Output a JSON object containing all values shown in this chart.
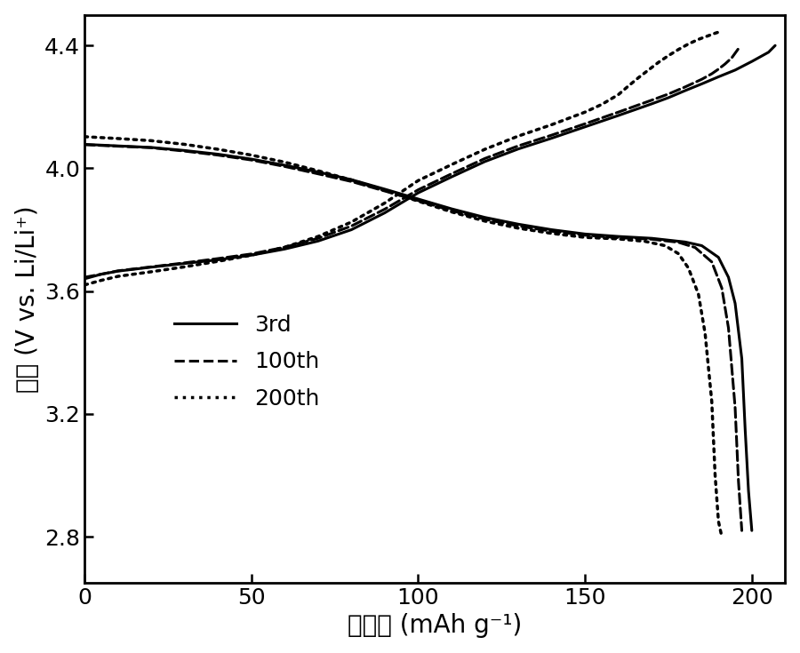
{
  "xlabel": "比容量 (mAh g⁻¹)",
  "ylabel": "电势 (V vs. Li/Li⁺)",
  "xlim": [
    0,
    210
  ],
  "ylim": [
    2.65,
    4.5
  ],
  "xticks": [
    0,
    50,
    100,
    150,
    200
  ],
  "yticks": [
    2.8,
    3.2,
    3.6,
    4.0,
    4.4
  ],
  "legend": [
    {
      "label": "3rd",
      "linestyle": "solid",
      "linewidth": 2.2
    },
    {
      "label": "100th",
      "linestyle": "dashed",
      "linewidth": 2.2
    },
    {
      "label": "200th",
      "linestyle": "dotted",
      "linewidth": 2.5
    }
  ],
  "curves": {
    "3rd_charge": {
      "x": [
        0,
        5,
        10,
        20,
        30,
        40,
        50,
        60,
        70,
        80,
        90,
        100,
        110,
        120,
        130,
        140,
        150,
        160,
        170,
        175,
        180,
        185,
        190,
        195,
        200,
        205,
        207
      ],
      "y": [
        3.64,
        3.655,
        3.665,
        3.678,
        3.69,
        3.702,
        3.717,
        3.737,
        3.763,
        3.8,
        3.855,
        3.92,
        3.972,
        4.022,
        4.063,
        4.098,
        4.135,
        4.172,
        4.21,
        4.23,
        4.253,
        4.275,
        4.298,
        4.32,
        4.348,
        4.378,
        4.4
      ],
      "linestyle": "solid",
      "linewidth": 2.2
    },
    "3rd_discharge": {
      "x": [
        0,
        10,
        20,
        30,
        40,
        50,
        60,
        70,
        80,
        90,
        100,
        110,
        120,
        130,
        140,
        150,
        160,
        170,
        180,
        185,
        190,
        193,
        195,
        197,
        198,
        199,
        200
      ],
      "y": [
        4.078,
        4.073,
        4.068,
        4.058,
        4.046,
        4.03,
        4.01,
        3.988,
        3.963,
        3.932,
        3.9,
        3.868,
        3.84,
        3.818,
        3.8,
        3.786,
        3.778,
        3.772,
        3.76,
        3.748,
        3.71,
        3.645,
        3.56,
        3.38,
        3.15,
        2.95,
        2.82
      ],
      "linestyle": "solid",
      "linewidth": 2.2
    },
    "100th_charge": {
      "x": [
        0,
        5,
        10,
        20,
        30,
        40,
        50,
        60,
        70,
        80,
        90,
        100,
        110,
        120,
        130,
        140,
        150,
        160,
        170,
        175,
        180,
        185,
        188,
        190,
        192,
        194,
        196
      ],
      "y": [
        3.645,
        3.655,
        3.666,
        3.679,
        3.692,
        3.706,
        3.721,
        3.743,
        3.772,
        3.812,
        3.867,
        3.93,
        3.982,
        4.032,
        4.073,
        4.108,
        4.145,
        4.183,
        4.222,
        4.242,
        4.265,
        4.29,
        4.308,
        4.323,
        4.34,
        4.36,
        4.39
      ],
      "linestyle": "dashed",
      "linewidth": 2.2
    },
    "100th_discharge": {
      "x": [
        0,
        10,
        20,
        30,
        40,
        50,
        60,
        70,
        80,
        90,
        100,
        110,
        120,
        130,
        140,
        150,
        160,
        170,
        178,
        183,
        188,
        191,
        193,
        195,
        196,
        197
      ],
      "y": [
        4.077,
        4.072,
        4.067,
        4.056,
        4.043,
        4.027,
        4.006,
        3.982,
        3.957,
        3.926,
        3.895,
        3.862,
        3.834,
        3.812,
        3.795,
        3.782,
        3.774,
        3.769,
        3.759,
        3.742,
        3.695,
        3.61,
        3.48,
        3.22,
        2.98,
        2.82
      ],
      "linestyle": "dashed",
      "linewidth": 2.2
    },
    "200th_charge": {
      "x": [
        0,
        5,
        10,
        20,
        30,
        40,
        50,
        60,
        70,
        80,
        90,
        100,
        110,
        120,
        130,
        140,
        150,
        155,
        160,
        163,
        166,
        169,
        172,
        175,
        178,
        181,
        184,
        187,
        189,
        191
      ],
      "y": [
        3.62,
        3.635,
        3.648,
        3.663,
        3.679,
        3.697,
        3.717,
        3.743,
        3.778,
        3.825,
        3.887,
        3.96,
        4.012,
        4.062,
        4.105,
        4.142,
        4.183,
        4.208,
        4.24,
        4.268,
        4.295,
        4.32,
        4.345,
        4.367,
        4.387,
        4.405,
        4.42,
        4.432,
        4.44,
        4.447
      ],
      "linestyle": "dotted",
      "linewidth": 2.5
    },
    "200th_discharge": {
      "x": [
        0,
        10,
        20,
        30,
        40,
        50,
        60,
        70,
        80,
        90,
        100,
        110,
        120,
        130,
        140,
        150,
        160,
        168,
        174,
        178,
        181,
        184,
        186,
        188,
        189,
        190,
        191
      ],
      "y": [
        4.103,
        4.097,
        4.09,
        4.078,
        4.062,
        4.043,
        4.02,
        3.992,
        3.962,
        3.928,
        3.893,
        3.858,
        3.828,
        3.805,
        3.788,
        3.775,
        3.77,
        3.762,
        3.748,
        3.722,
        3.675,
        3.59,
        3.462,
        3.24,
        3.0,
        2.85,
        2.8
      ],
      "linestyle": "dotted",
      "linewidth": 2.5
    }
  },
  "background_color": "#ffffff",
  "line_color": "#000000",
  "fontsize_label": 20,
  "fontsize_tick": 18,
  "fontsize_legend": 18
}
